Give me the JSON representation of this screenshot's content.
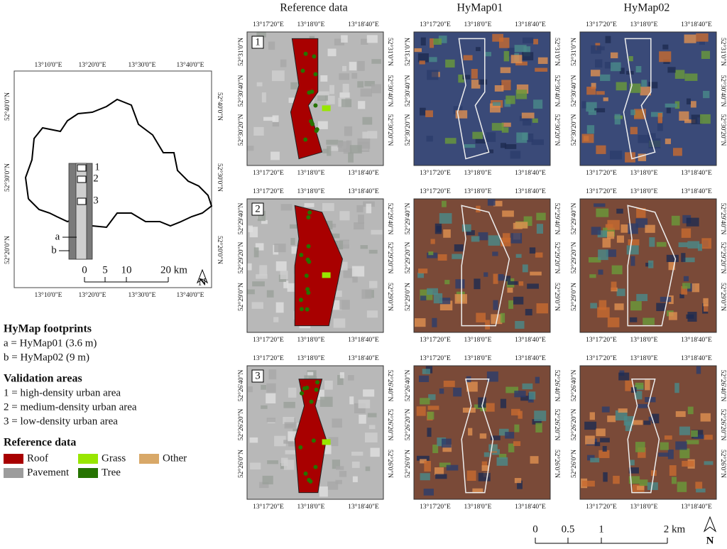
{
  "column_titles": [
    "Reference data",
    "HyMap01",
    "HyMap02"
  ],
  "overview_map": {
    "lon_labels": [
      "13°10'0\"E",
      "13°20'0\"E",
      "13°30'0\"E",
      "13°40'0\"E"
    ],
    "lat_labels": [
      "52°40'0\"N",
      "52°30'0\"N",
      "52°20'0\"N"
    ],
    "area_labels": [
      "1",
      "2",
      "3"
    ],
    "footprint_labels": [
      "a",
      "b"
    ],
    "scale_labels": [
      "0",
      "5",
      "10",
      "20 km"
    ],
    "north": "N"
  },
  "legend": {
    "footprints_title": "HyMap footprints",
    "footprints": [
      "a = HyMap01 (3.6 m)",
      "b = HyMap02 (9 m)"
    ],
    "areas_title": "Validation areas",
    "areas": [
      "1 = high-density urban area",
      "2 = medium-density urban area",
      "3 = low-density urban area"
    ],
    "reference_title": "Reference data",
    "classes": [
      {
        "name": "Roof",
        "color": "#a80000"
      },
      {
        "name": "Grass",
        "color": "#98e600"
      },
      {
        "name": "Other",
        "color": "#d8a868"
      },
      {
        "name": "Pavement",
        "color": "#9c9c9c"
      },
      {
        "name": "Tree",
        "color": "#267300"
      }
    ]
  },
  "panels": {
    "lon_labels": [
      "13°17'20\"E",
      "13°18'0\"E",
      "13°18'40\"E"
    ],
    "rows": [
      {
        "number": "1",
        "lat_labels": [
          "52°31'0\"N",
          "52°30'40\"N",
          "52°30'20\"N"
        ]
      },
      {
        "number": "2",
        "lat_labels": [
          "52°29'40\"N",
          "52°29'20\"N",
          "52°29'0\"N"
        ]
      },
      {
        "number": "3",
        "lat_labels": [
          "52°26'40\"N",
          "52°26'20\"N",
          "52°26'0\"N"
        ]
      }
    ]
  },
  "scale_bar": {
    "labels": [
      "0",
      "0.5",
      "1",
      "2 km"
    ],
    "north": "N"
  }
}
